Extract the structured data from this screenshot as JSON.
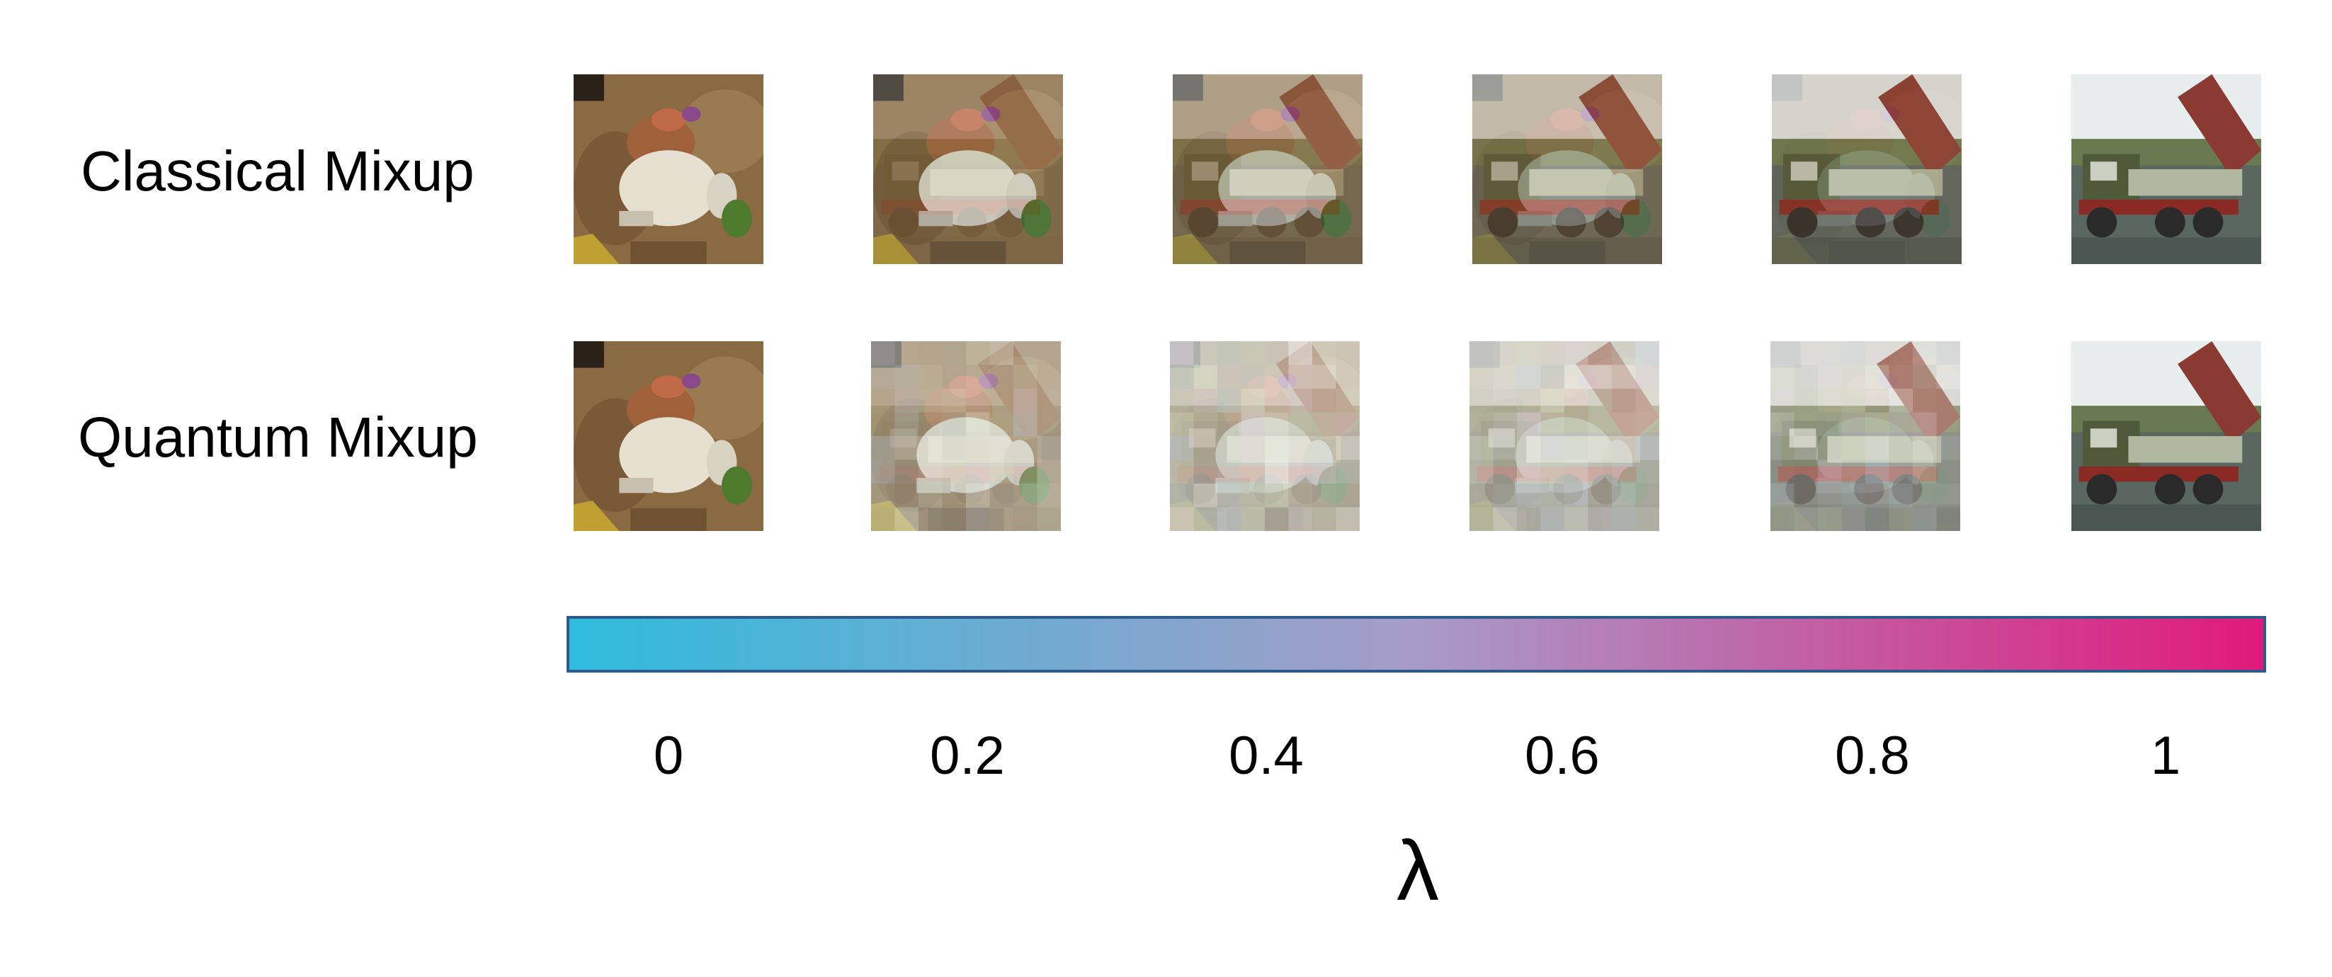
{
  "rows": [
    {
      "label": "Classical Mixup",
      "method": "classical"
    },
    {
      "label": "Quantum Mixup",
      "method": "quantum"
    }
  ],
  "lambda_values": [
    0,
    0.2,
    0.4,
    0.6,
    0.8,
    1
  ],
  "colorbar": {
    "ticks": [
      "0",
      "0.2",
      "0.4",
      "0.6",
      "0.8",
      "1"
    ],
    "axis_label": "λ",
    "color_start": "#2fbcdc",
    "color_mid": "#a79cc8",
    "color_end": "#e01a7a",
    "border_color": "#2f5a8c"
  },
  "images": {
    "source_a": "frog-photo",
    "source_b": "dump-truck-photo"
  }
}
